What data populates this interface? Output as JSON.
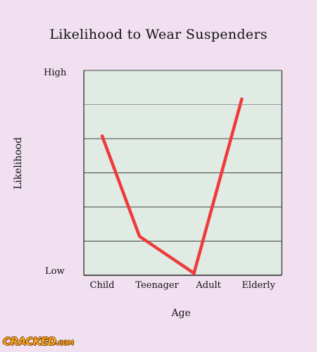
{
  "chart_data": {
    "type": "line",
    "title": "Likelihood to Wear Suspenders",
    "xlabel": "Age",
    "ylabel": "Likelihood",
    "categories": [
      "Child",
      "Teenager",
      "Adult",
      "Elderly"
    ],
    "y_range_labels": {
      "high": "High",
      "low": "Low"
    },
    "ylim": [
      0,
      100
    ],
    "grid": true,
    "legend": "none",
    "series": [
      {
        "values": [
          68,
          19,
          1,
          86
        ],
        "x_positions": [
          0.0,
          0.5,
          1.23,
          1.87
        ]
      }
    ]
  },
  "colors": {
    "background": "#f0e0f0",
    "plot_area": "#e0ebe4",
    "line": "#ee3b3b",
    "grid": "#444444"
  },
  "branding": {
    "logo_text": "CRACKED",
    "logo_suffix": ".COM"
  }
}
